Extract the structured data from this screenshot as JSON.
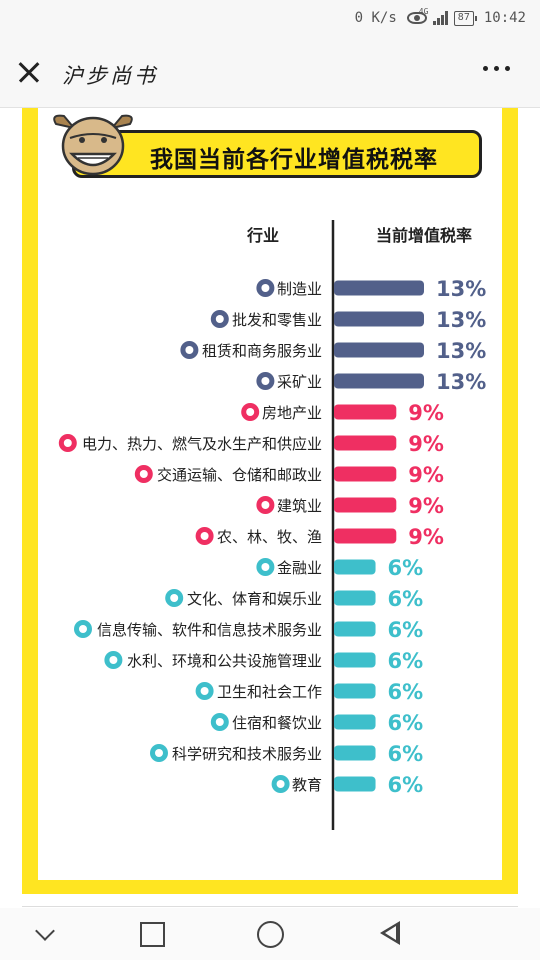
{
  "status_bar": {
    "speed": "0 K/s",
    "network": "4G",
    "battery": "87",
    "time": "10:42"
  },
  "header": {
    "title": "沪步尚书"
  },
  "colors": {
    "frame": "#ffe521",
    "tier_13": "#52608a",
    "tier_9": "#ef2f62",
    "tier_6": "#3ebfcb"
  },
  "chart_data": {
    "type": "bar",
    "orientation": "horizontal",
    "title": "我国当前各行业增值税税率",
    "column_headers": {
      "category": "行业",
      "value": "当前增值税率"
    },
    "unit": "%",
    "categories": [
      "制造业",
      "批发和零售业",
      "租赁和商务服务业",
      "采矿业",
      "房地产业",
      "电力、热力、燃气及水生产和供应业",
      "交通运输、仓储和邮政业",
      "建筑业",
      "农、林、牧、渔",
      "金融业",
      "文化、体育和娱乐业",
      "信息传输、软件和信息技术服务业",
      "水利、环境和公共设施管理业",
      "卫生和社会工作",
      "住宿和餐饮业",
      "科学研究和技术服务业",
      "教育"
    ],
    "values": [
      13,
      13,
      13,
      13,
      9,
      9,
      9,
      9,
      9,
      6,
      6,
      6,
      6,
      6,
      6,
      6,
      6
    ],
    "value_labels": [
      "13%",
      "13%",
      "13%",
      "13%",
      "9%",
      "9%",
      "9%",
      "9%",
      "9%",
      "6%",
      "6%",
      "6%",
      "6%",
      "6%",
      "6%",
      "6%",
      "6%"
    ],
    "icons": [
      "recycle-icon",
      "cart-icon",
      "truck-icon",
      "tools-icon",
      "building-icon",
      "house-icon",
      "bus-icon",
      "crane-icon",
      "crop-icon",
      "money-bag-icon",
      "sports-icon",
      "gear-icon",
      "water-tap-icon",
      "hospital-icon",
      "dining-icon",
      "network-icon",
      "book-icon"
    ],
    "xlim": [
      0,
      13
    ],
    "grid": false,
    "legend": "none"
  }
}
